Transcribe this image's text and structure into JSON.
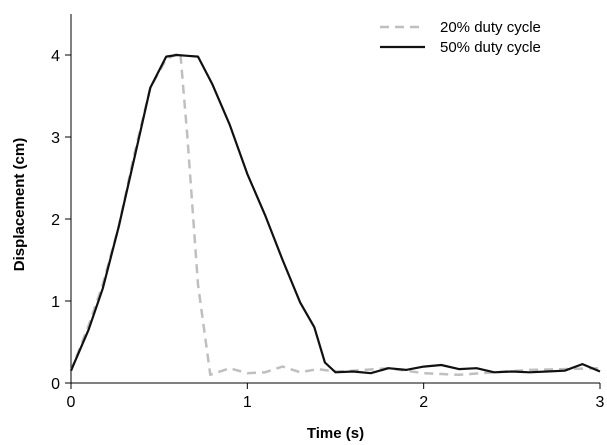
{
  "chart_data": {
    "type": "line",
    "title": "",
    "xlabel": "Time (s)",
    "ylabel": "Displacement (cm)",
    "xlim": [
      0,
      3
    ],
    "ylim": [
      0,
      4.5
    ],
    "xticks": [
      0,
      1,
      2,
      3
    ],
    "yticks": [
      0,
      1,
      2,
      3,
      4
    ],
    "xtick_labels": [
      "0",
      "1",
      "2",
      "3"
    ],
    "ytick_labels": [
      "0",
      "1",
      "2",
      "3",
      "4"
    ],
    "grid": false,
    "legend": {
      "position": "top-right",
      "entries": [
        "20% duty cycle",
        "50% duty cycle"
      ]
    },
    "series": [
      {
        "name": "20% duty cycle",
        "color": "#bfbfbf",
        "style": "dashed",
        "x": [
          0,
          0.1,
          0.18,
          0.27,
          0.36,
          0.45,
          0.54,
          0.62,
          0.66,
          0.72,
          0.79,
          0.9,
          1.0,
          1.1,
          1.2,
          1.3,
          1.4,
          1.5,
          1.6,
          1.8,
          2.0,
          2.2,
          2.4,
          2.6,
          2.8,
          3.0
        ],
        "y": [
          0.15,
          0.7,
          1.2,
          1.9,
          2.8,
          3.6,
          3.95,
          4.03,
          3.0,
          1.2,
          0.1,
          0.18,
          0.12,
          0.13,
          0.2,
          0.13,
          0.17,
          0.14,
          0.15,
          0.18,
          0.12,
          0.1,
          0.13,
          0.16,
          0.17,
          0.18
        ]
      },
      {
        "name": "50% duty cycle",
        "color": "#111111",
        "style": "solid",
        "x": [
          0,
          0.1,
          0.18,
          0.27,
          0.36,
          0.45,
          0.54,
          0.6,
          0.66,
          0.72,
          0.8,
          0.9,
          1.0,
          1.1,
          1.2,
          1.3,
          1.38,
          1.44,
          1.5,
          1.6,
          1.7,
          1.8,
          1.9,
          2.0,
          2.1,
          2.2,
          2.3,
          2.4,
          2.5,
          2.6,
          2.7,
          2.8,
          2.9,
          3.0
        ],
        "y": [
          0.15,
          0.65,
          1.15,
          1.9,
          2.75,
          3.6,
          3.98,
          4.0,
          3.99,
          3.98,
          3.65,
          3.15,
          2.55,
          2.05,
          1.5,
          0.98,
          0.68,
          0.25,
          0.13,
          0.14,
          0.12,
          0.18,
          0.16,
          0.2,
          0.22,
          0.17,
          0.18,
          0.13,
          0.14,
          0.13,
          0.14,
          0.15,
          0.23,
          0.14
        ]
      }
    ]
  }
}
